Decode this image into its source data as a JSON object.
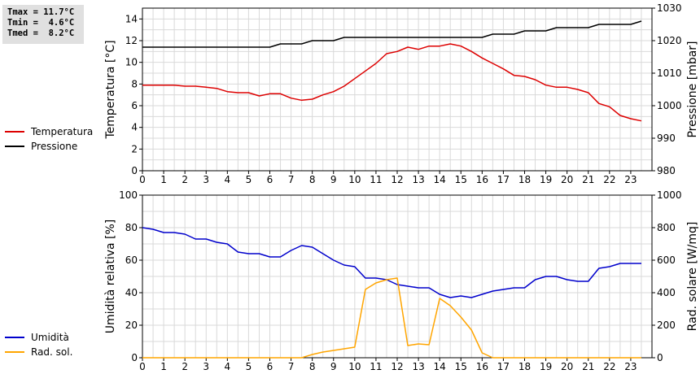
{
  "stats": {
    "tmax": "Tmax = 11.7°C",
    "tmin": "Tmin =  4.6°C",
    "tmed": "Tmed =  8.2°C"
  },
  "colors": {
    "temperatura": "#dd0000",
    "pressione": "#000000",
    "umidita": "#0000cc",
    "radsol": "#ffa500",
    "grid": "#d9d9d9"
  },
  "legend_top": [
    {
      "label": "Temperatura",
      "color": "#dd0000"
    },
    {
      "label": "Pressione",
      "color": "#000000"
    }
  ],
  "legend_bottom": [
    {
      "label": "Umidità",
      "color": "#0000cc"
    },
    {
      "label": "Rad. sol.",
      "color": "#ffa500"
    }
  ],
  "chart_data": [
    {
      "type": "line",
      "xlabel": "",
      "ylabel": "Temperatura [°C]",
      "y2label": "Pressione [mbar]",
      "xlim": [
        0,
        24
      ],
      "xticks": [
        "0",
        "1",
        "2",
        "3",
        "4",
        "5",
        "6",
        "7",
        "8",
        "9",
        "10",
        "11",
        "12",
        "13",
        "14",
        "15",
        "16",
        "17",
        "18",
        "19",
        "20",
        "21",
        "22",
        "23"
      ],
      "ylim": [
        0,
        15
      ],
      "yticks": [
        "0",
        "2",
        "4",
        "6",
        "8",
        "10",
        "12",
        "14"
      ],
      "y2lim": [
        980,
        1030
      ],
      "y2ticks": [
        "980",
        "990",
        "1000",
        "1010",
        "1020",
        "1030"
      ],
      "grid": true,
      "series": [
        {
          "name": "Temperatura",
          "axis": "left",
          "x": [
            0,
            0.5,
            1,
            1.5,
            2,
            2.5,
            3,
            3.5,
            4,
            4.5,
            5,
            5.5,
            6,
            6.5,
            7,
            7.5,
            8,
            8.5,
            9,
            9.5,
            10,
            10.5,
            11,
            11.5,
            12,
            12.5,
            13,
            13.5,
            14,
            14.5,
            15,
            15.5,
            16,
            16.5,
            17,
            17.5,
            18,
            18.5,
            19,
            19.5,
            20,
            20.5,
            21,
            21.5,
            22,
            22.5,
            23,
            23.5
          ],
          "values": [
            7.9,
            7.9,
            7.9,
            7.9,
            7.8,
            7.8,
            7.7,
            7.6,
            7.3,
            7.2,
            7.2,
            6.9,
            7.1,
            7.1,
            6.7,
            6.5,
            6.6,
            7.0,
            7.3,
            7.8,
            8.5,
            9.2,
            9.9,
            10.8,
            11.0,
            11.4,
            11.2,
            11.5,
            11.5,
            11.7,
            11.5,
            11.0,
            10.4,
            9.9,
            9.4,
            8.8,
            8.7,
            8.4,
            7.9,
            7.7,
            7.7,
            7.5,
            7.2,
            6.2,
            5.9,
            5.1,
            4.8,
            4.6
          ]
        },
        {
          "name": "Pressione",
          "axis": "right",
          "x": [
            0,
            6,
            6.5,
            7.5,
            8,
            9,
            9.5,
            12,
            16,
            16.5,
            17.5,
            18,
            19,
            19.5,
            21,
            21.5,
            23,
            23.5
          ],
          "values": [
            1018,
            1018,
            1019,
            1019,
            1020,
            1020,
            1021,
            1021,
            1021,
            1022,
            1022,
            1023,
            1023,
            1024,
            1024,
            1025,
            1025,
            1026
          ]
        }
      ]
    },
    {
      "type": "line",
      "xlabel": "",
      "ylabel": "Umidità relativa [%]",
      "y2label": "Rad. solare [W/mq]",
      "xlim": [
        0,
        24
      ],
      "xticks": [
        "0",
        "1",
        "2",
        "3",
        "4",
        "5",
        "6",
        "7",
        "8",
        "9",
        "10",
        "11",
        "12",
        "13",
        "14",
        "15",
        "16",
        "17",
        "18",
        "19",
        "20",
        "21",
        "22",
        "23"
      ],
      "ylim": [
        0,
        100
      ],
      "yticks": [
        "0",
        "20",
        "40",
        "60",
        "80",
        "100"
      ],
      "y2lim": [
        0,
        1000
      ],
      "y2ticks": [
        "0",
        "200",
        "400",
        "600",
        "800",
        "1000"
      ],
      "grid": true,
      "series": [
        {
          "name": "Umidità",
          "axis": "left",
          "x": [
            0,
            0.5,
            1,
            1.5,
            2,
            2.5,
            3,
            3.5,
            4,
            4.5,
            5,
            5.5,
            6,
            6.5,
            7,
            7.5,
            8,
            8.5,
            9,
            9.5,
            10,
            10.5,
            11,
            11.5,
            12,
            12.5,
            13,
            13.5,
            14,
            14.5,
            15,
            15.5,
            16,
            16.5,
            17,
            17.5,
            18,
            18.5,
            19,
            19.5,
            20,
            20.5,
            21,
            21.5,
            22,
            22.5,
            23,
            23.5
          ],
          "values": [
            80,
            79,
            77,
            77,
            76,
            73,
            73,
            71,
            70,
            65,
            64,
            64,
            62,
            62,
            66,
            69,
            68,
            64,
            60,
            57,
            56,
            49,
            49,
            48,
            45,
            44,
            43,
            43,
            39,
            37,
            38,
            37,
            39,
            41,
            42,
            43,
            43,
            48,
            50,
            50,
            48,
            47,
            47,
            55,
            56,
            58,
            58,
            58
          ]
        },
        {
          "name": "Rad. sol.",
          "axis": "right",
          "x": [
            0,
            7.5,
            8,
            8.5,
            9,
            9.5,
            10,
            10.5,
            11,
            11.5,
            12,
            12.5,
            13,
            13.5,
            14,
            14.5,
            15,
            15.5,
            16,
            16.5,
            17,
            18,
            19,
            20,
            21,
            22,
            23,
            23.5
          ],
          "values": [
            0,
            0,
            20,
            35,
            45,
            55,
            65,
            420,
            460,
            480,
            490,
            75,
            85,
            80,
            365,
            320,
            250,
            170,
            30,
            0,
            0,
            0,
            0,
            0,
            0,
            0,
            0,
            0
          ]
        }
      ]
    }
  ]
}
